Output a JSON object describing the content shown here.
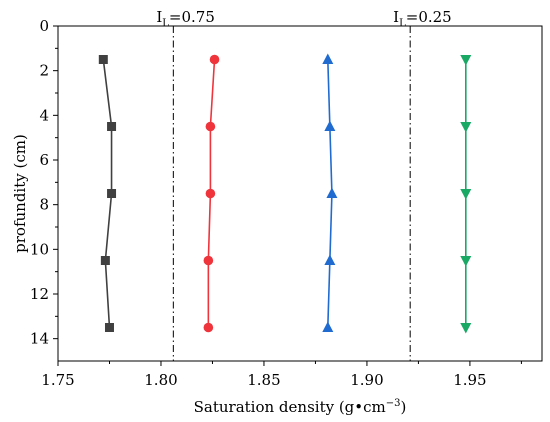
{
  "chart_data": {
    "type": "line",
    "title": "",
    "xlabel": "Saturation density (g•cm",
    "xlabel_sup": "−3",
    "xlabel_close": ")",
    "ylabel": "profundity (cm)",
    "xlim": [
      1.75,
      1.985
    ],
    "ylim": [
      0,
      15
    ],
    "y_inverted": true,
    "x_axis_position": "bottom",
    "y_axis_position": "left",
    "grid": false,
    "legend": "none",
    "xticks": [
      1.75,
      1.8,
      1.85,
      1.9,
      1.95
    ],
    "xtick_labels": [
      "1.75",
      "1.80",
      "1.85",
      "1.90",
      "1.95"
    ],
    "yticks": [
      0,
      2,
      4,
      6,
      8,
      10,
      12,
      14
    ],
    "ytick_labels": [
      "0",
      "2",
      "4",
      "6",
      "8",
      "10",
      "12",
      "14"
    ],
    "series": [
      {
        "color": "#404040",
        "marker": "square",
        "x": [
          1.772,
          1.776,
          1.776,
          1.773,
          1.775
        ],
        "y": [
          1.5,
          4.5,
          7.5,
          10.5,
          13.5
        ]
      },
      {
        "color": "#f0343c",
        "marker": "circle",
        "x": [
          1.826,
          1.824,
          1.824,
          1.823,
          1.823
        ],
        "y": [
          1.5,
          4.5,
          7.5,
          10.5,
          13.5
        ]
      },
      {
        "color": "#1f6bd0",
        "marker": "triangle-up",
        "x": [
          1.881,
          1.882,
          1.883,
          1.882,
          1.881
        ],
        "y": [
          1.5,
          4.5,
          7.5,
          10.5,
          13.5
        ]
      },
      {
        "color": "#1aa865",
        "marker": "triangle-down",
        "x": [
          1.948,
          1.948,
          1.948,
          1.948,
          1.948
        ],
        "y": [
          1.5,
          4.5,
          7.5,
          10.5,
          13.5
        ]
      }
    ],
    "reference_lines": [
      {
        "x": 1.806,
        "label_main": "I",
        "label_sub": "L",
        "label_value": "=0.75"
      },
      {
        "x": 1.921,
        "label_main": "I",
        "label_sub": "L",
        "label_value": "=0.25"
      }
    ]
  }
}
